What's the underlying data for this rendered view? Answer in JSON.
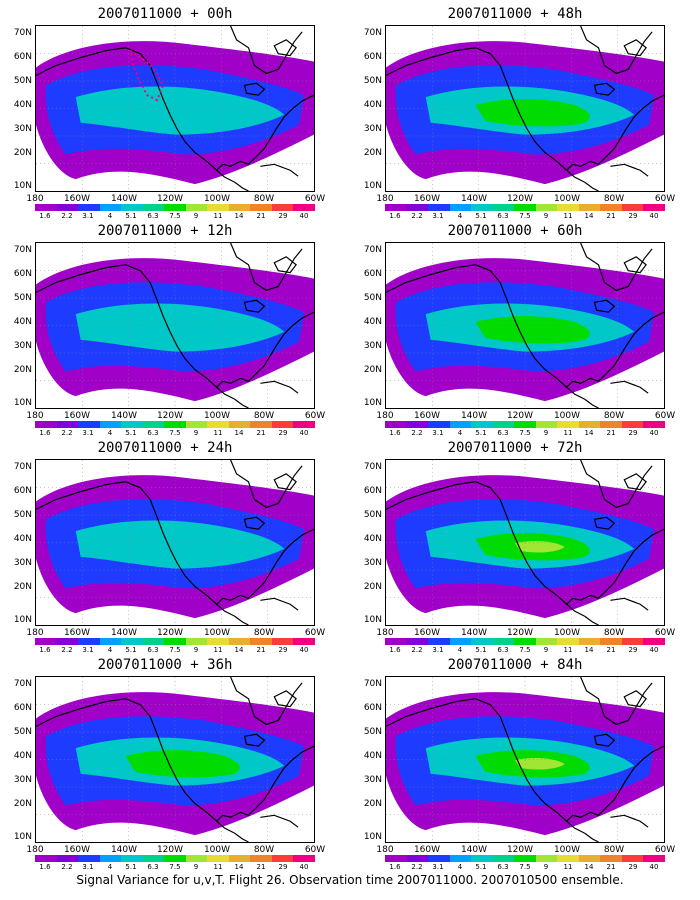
{
  "panels": [
    {
      "title": "2007011000 + 00h",
      "level": 0.15
    },
    {
      "title": "2007011000 + 48h",
      "level": 0.55
    },
    {
      "title": "2007011000 + 12h",
      "level": 0.25
    },
    {
      "title": "2007011000 + 60h",
      "level": 0.6
    },
    {
      "title": "2007011000 + 24h",
      "level": 0.35
    },
    {
      "title": "2007011000 + 72h",
      "level": 0.65
    },
    {
      "title": "2007011000 + 36h",
      "level": 0.45
    },
    {
      "title": "2007011000 + 84h",
      "level": 0.75
    }
  ],
  "lat_labels": [
    "70N",
    "60N",
    "50N",
    "40N",
    "30N",
    "20N",
    "10N"
  ],
  "lon_labels": [
    "180",
    "160W",
    "140W",
    "120W",
    "100W",
    "80W",
    "60W"
  ],
  "colorbar": {
    "labels": [
      "1.6",
      "2.2",
      "3.1",
      "4",
      "5.1",
      "6.3",
      "7.5",
      "9",
      "11",
      "14",
      "21",
      "29",
      "40"
    ],
    "colors": [
      "#a000c8",
      "#8200dc",
      "#1e3cff",
      "#00a0ff",
      "#00c8c8",
      "#00d28c",
      "#00dc00",
      "#a0e632",
      "#e6dc32",
      "#e6af2d",
      "#f08228",
      "#fa3c3c",
      "#f00082"
    ]
  },
  "caption": "Signal Variance for u,v,T. Flight 26. Observation time 2007011000. 2007010500 ensemble."
}
